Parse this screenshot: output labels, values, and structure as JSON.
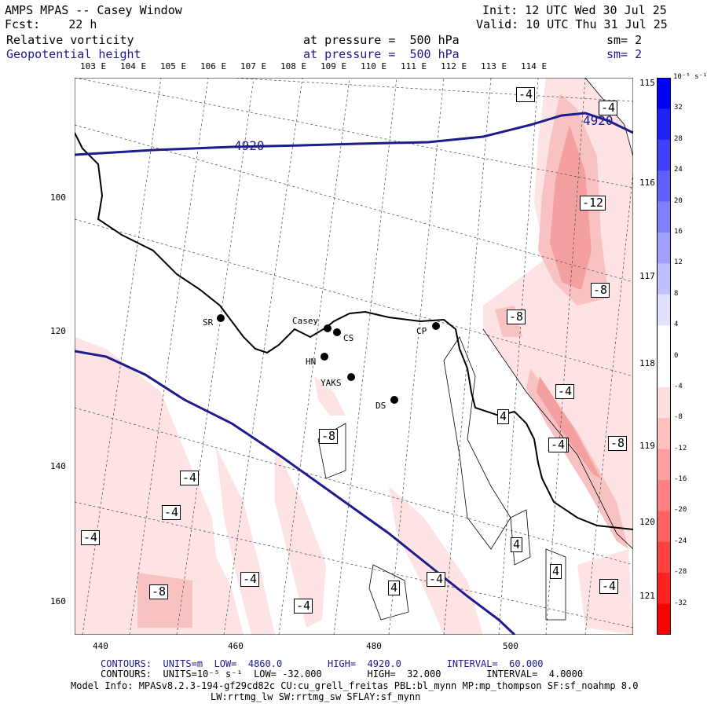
{
  "header": {
    "title": "AMPS MPAS -- Casey Window",
    "forecast": "Fcst:    22 h",
    "init": "Init: 12 UTC Wed 30 Jul 25",
    "valid": "Valid: 10 UTC Thu 31 Jul 25",
    "field1": {
      "name": "Relative vorticity",
      "pressure": "at pressure =  500 hPa",
      "smoothing": "sm= 2"
    },
    "field2": {
      "name": "Geopotential height",
      "pressure": "at pressure =  500 hPa",
      "smoothing": "sm= 2"
    }
  },
  "colors": {
    "height_contour": "#1c1c8c",
    "negative_shade_light": "#fde3e3",
    "negative_shade_mid": "#f9c2c2",
    "negative_shade_dark": "#f4a0a0",
    "coastline": "#000000"
  },
  "map": {
    "lon_top_labels": [
      "103 E",
      "104 E",
      "105 E",
      "106 E",
      "107 E",
      "108 E",
      "109 E",
      "110 E",
      "111 E",
      "112 E",
      "113 E",
      "114 E"
    ],
    "lon_right_labels": [
      "115 E",
      "116 E",
      "117 E",
      "118 E",
      "119 E",
      "120 E",
      "121 E"
    ],
    "y_axis_labels": [
      "100",
      "120",
      "140",
      "160"
    ],
    "x_axis_labels": [
      "440",
      "460",
      "480",
      "500"
    ],
    "height_contour_label": "4920",
    "vorticity_labels": [
      "-4",
      "-4",
      "-12",
      "-8",
      "-8",
      "-4",
      "-4",
      "-8",
      "-4",
      "-4",
      "-4",
      "-8",
      "-8",
      "-4",
      "-4",
      "-4",
      "4",
      "4",
      "4",
      "4",
      "-4",
      "-4"
    ],
    "stations": [
      "SR",
      "Casey",
      "CS",
      "CP",
      "HN",
      "YAKS",
      "DS"
    ]
  },
  "colorbar": {
    "unit": "10⁻⁵ s⁻¹",
    "ticks": [
      "32",
      "28",
      "24",
      "20",
      "16",
      "12",
      "8",
      "4",
      "0",
      "-4",
      "-8",
      "-12",
      "-16",
      "-20",
      "-24",
      "-28",
      "-32"
    ]
  },
  "footer": {
    "contours1": "CONTOURS:  UNITS=m  LOW=  4860.0        HIGH=  4920.0        INTERVAL=  60.000",
    "contours2": "CONTOURS:  UNITS=10⁻⁵ s⁻¹  LOW= -32.000        HIGH=  32.000        INTERVAL=  4.0000",
    "model_info": "Model Info: MPASv8.2.3-194-gf29cd82c CU:cu_grell_freitas PBL:bl_mynn MP:mp_thompson SF:sf_noahmp 8.0",
    "model_info2": "LW:rrtmg_lw SW:rrtmg_sw SFLAY:sf_mynn"
  }
}
